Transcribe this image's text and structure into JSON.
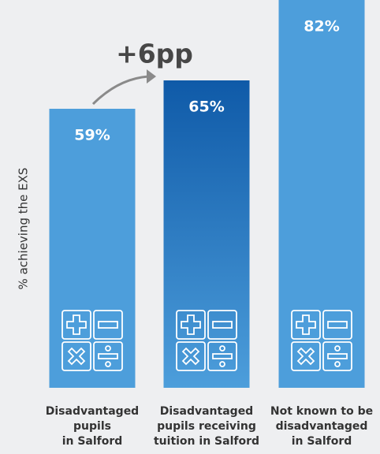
{
  "chart_data": {
    "type": "bar",
    "annotation": "+6pp",
    "y_label": "% achieving the EXS",
    "categories": [
      "Disadvantaged\npupils\nin Salford",
      "Disadvantaged\npupils receiving\ntuition in Salford",
      "Not known to be\ndisadvantaged\nin Salford"
    ],
    "values": [
      59,
      65,
      82
    ],
    "value_labels": [
      "59%",
      "65%",
      "82%"
    ],
    "colors": [
      "#4d9edb",
      "#0f5aa8",
      "#4d9edb"
    ],
    "ylim": [
      0,
      82
    ]
  }
}
